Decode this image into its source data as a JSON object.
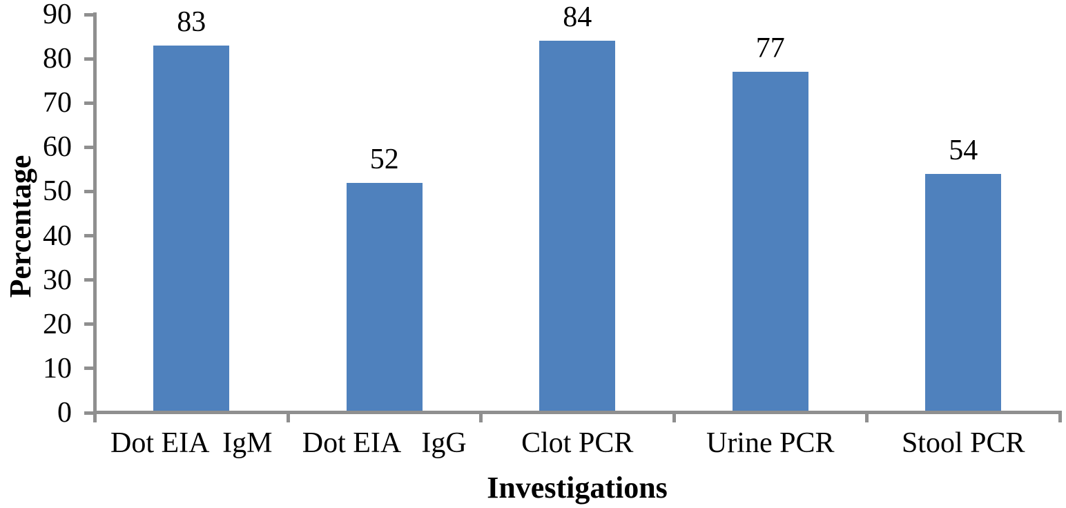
{
  "chart_data": {
    "type": "bar",
    "title": "",
    "categories": [
      "Dot EIA  IgM",
      "Dot EIA   IgG",
      "Clot PCR",
      "Urine PCR",
      "Stool PCR"
    ],
    "values": [
      83,
      52,
      84,
      77,
      54
    ],
    "data_labels": [
      "83",
      "52",
      "84",
      "77",
      "54"
    ],
    "xlabel": "Investigations",
    "ylabel": "Percentage",
    "ylim": [
      0,
      90
    ],
    "yticks": [
      0,
      10,
      20,
      30,
      40,
      50,
      60,
      70,
      80,
      90
    ],
    "grid": "off",
    "legend": "none",
    "colors": {
      "bar": "#4F81BD",
      "axis": "#8F8F8F",
      "text": "#000000",
      "background": "#FFFFFF"
    }
  }
}
